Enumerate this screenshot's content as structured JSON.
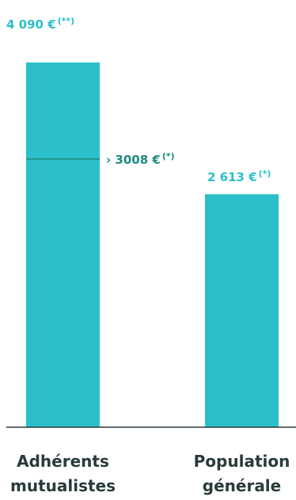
{
  "colors": {
    "bar": "#2bbfc9",
    "label": "#2bbfc9",
    "annotation": "#1e8a80",
    "marker_line": "#1e8a80",
    "axis": "#2b3a3a",
    "category_text": "#2b3a3a"
  },
  "chart_data": {
    "type": "bar",
    "categories": [
      "Adhérents mutualistes",
      "Population générale"
    ],
    "category_lines": [
      [
        "Adhérents",
        "mutualistes"
      ],
      [
        "Population",
        "générale"
      ]
    ],
    "values": [
      4090,
      2613
    ],
    "value_labels": [
      {
        "main": "4 090 €",
        "sup": "(**)"
      },
      {
        "main": "2 613 €",
        "sup": "(*)"
      }
    ],
    "ylim": [
      0,
      4090
    ],
    "annotation": {
      "category_index": 0,
      "value": 3008,
      "main": "› 3008 €",
      "sup": "(*)"
    },
    "title": "",
    "xlabel": "",
    "ylabel": "",
    "grid": false,
    "legend": "none"
  }
}
